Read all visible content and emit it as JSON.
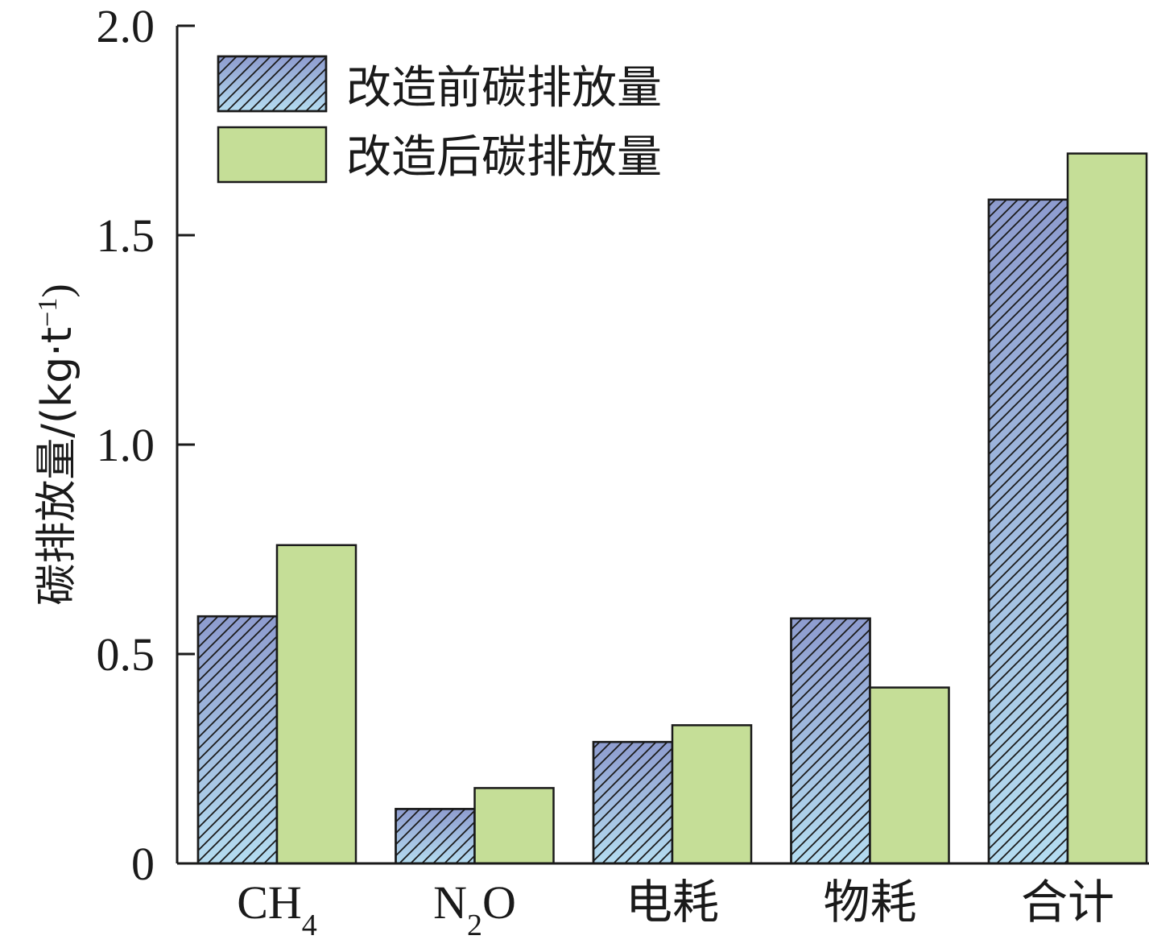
{
  "chart_data": {
    "type": "bar",
    "categories": [
      "CH",
      "N",
      "电耗",
      "物耗",
      "合计"
    ],
    "category_subscripts": [
      "4",
      "2",
      "",
      "",
      ""
    ],
    "category_suffixes": [
      "",
      "O",
      "",
      "",
      ""
    ],
    "series": [
      {
        "name": "改造前碳排放量",
        "values": [
          0.59,
          0.13,
          0.29,
          0.585,
          1.585
        ],
        "style": "hatched-gradient"
      },
      {
        "name": "改造后碳排放量",
        "values": [
          0.76,
          0.18,
          0.33,
          0.42,
          1.695
        ],
        "style": "solid"
      }
    ],
    "ylabel": "碳排放量/(kg·t",
    "ylabel_sup": "−1",
    "ylabel_close": ")",
    "ylim": [
      0,
      2.0
    ],
    "yticks": [
      0,
      0.5,
      1.0,
      1.5,
      2.0
    ],
    "ytick_labels": [
      "0",
      "0.5",
      "1.0",
      "1.5",
      "2.0"
    ],
    "legend_position": "top-left",
    "grid": false,
    "colors": {
      "series1_top": "#8e9ccf",
      "series1_bottom": "#b4dcf0",
      "series2_fill": "#c5de97",
      "stroke": "#1a1a1a"
    }
  }
}
